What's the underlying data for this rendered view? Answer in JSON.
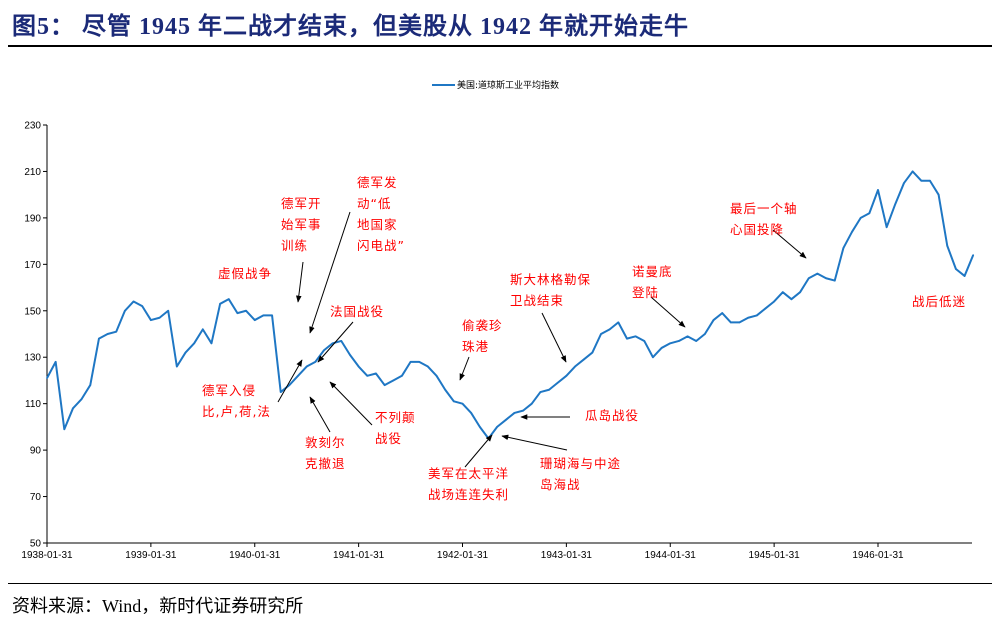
{
  "title": "图5：  尽管 1945 年二战才结束，但美股从 1942 年就开始走牛",
  "source": "资料来源：Wind，新时代证券研究所",
  "colors": {
    "series": "#1f77c4",
    "title": "#1b2a78",
    "annotation": "#ff0000"
  },
  "chart_data": {
    "type": "line",
    "title": "",
    "xlabel": "",
    "ylabel": "",
    "ylim": [
      50,
      230
    ],
    "yticks": [
      50,
      70,
      90,
      110,
      130,
      150,
      170,
      190,
      210,
      230
    ],
    "xticks": [
      "1938-01-31",
      "1939-01-31",
      "1940-01-31",
      "1941-01-31",
      "1942-01-31",
      "1943-01-31",
      "1944-01-31",
      "1945-01-31",
      "1946-01-31"
    ],
    "legend": {
      "position": "top-center",
      "entries": [
        "美国:道琼斯工业平均指数"
      ]
    },
    "grid": false,
    "series": [
      {
        "name": "美国:道琼斯工业平均指数",
        "start": "1938-01",
        "frequency": "monthly",
        "values": [
          121,
          128,
          99,
          108,
          112,
          118,
          138,
          140,
          141,
          150,
          154,
          152,
          146,
          147,
          150,
          126,
          132,
          136,
          142,
          136,
          153,
          155,
          149,
          150,
          146,
          148,
          148,
          115,
          118,
          122,
          126,
          128,
          133,
          136,
          137,
          131,
          126,
          122,
          123,
          118,
          120,
          122,
          128,
          128,
          126,
          122,
          116,
          111,
          110,
          106,
          100,
          95,
          100,
          103,
          106,
          107,
          110,
          115,
          116,
          119,
          122,
          126,
          129,
          132,
          140,
          142,
          145,
          138,
          139,
          137,
          130,
          134,
          136,
          137,
          139,
          137,
          140,
          146,
          149,
          145,
          145,
          147,
          148,
          151,
          154,
          158,
          155,
          158,
          164,
          166,
          164,
          163,
          177,
          184,
          190,
          192,
          202,
          186,
          196,
          205,
          210,
          206,
          206,
          200,
          178,
          168,
          165,
          174
        ]
      }
    ],
    "annotations": [
      "虚假战争",
      "德军开\n始军事\n训练",
      "德军发\n动“低\n地国家\n闪电战”",
      "法国战役",
      "德军入侵\n比,卢,荷,法",
      "敦刻尔\n克撤退",
      "不列颠\n战役",
      "偷袭珍\n珠港",
      "美军在太平洋\n战场连连失利",
      "斯大林格勒保\n卫战结束",
      "瓜岛战役",
      "珊瑚海与中途\n岛海战",
      "诺曼底\n登陆",
      "最后一个轴\n心国投降",
      "战后低迷"
    ]
  }
}
